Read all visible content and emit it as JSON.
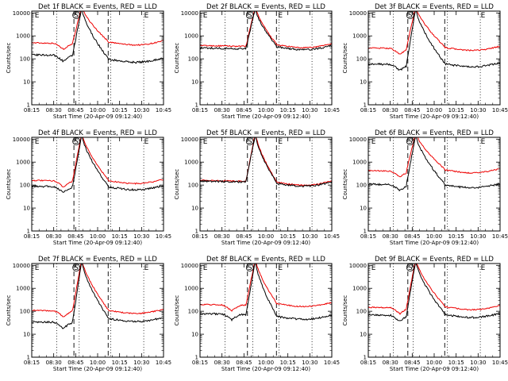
{
  "chart_data": {
    "type": "line",
    "y_scale": "log",
    "x_tick_labels": [
      "08:15",
      "08:30",
      "08:45",
      "10:00",
      "10:15",
      "10:30",
      "10:45"
    ],
    "y_tick_labels": [
      "1",
      "10",
      "100",
      "1000",
      "10000"
    ],
    "ylim": [
      1,
      12000
    ],
    "y_ticks": [
      1,
      10,
      100,
      1000,
      10000
    ],
    "xlabel": "Start Time (20-Apr-09 09:12:40)",
    "ylabel": "Counts/sec",
    "colors": {
      "events": "#000000",
      "lld": "#ee0000"
    },
    "marker_letters": [
      "E",
      "S",
      "E"
    ],
    "panels": [
      {
        "title": "Det 1f BLACK = Events, RED = LLD",
        "dotted": [
          0.19,
          0.36,
          0.6,
          0.85
        ],
        "dashed": [
          0.32,
          0.58
        ],
        "markers": [
          0.04,
          0.32,
          0.87
        ],
        "events_level": 150,
        "lld_level": 500,
        "events_after": 80,
        "lld_after": 450,
        "dip": true
      },
      {
        "title": "Det 2f BLACK = Events, RED = LLD",
        "dotted": [
          0.19,
          0.4,
          0.6,
          0.85
        ],
        "dashed": [
          0.36,
          0.58
        ],
        "markers": [
          0.04,
          0.36,
          0.61
        ],
        "events_level": 300,
        "lld_level": 380,
        "events_after": 280,
        "lld_after": 340,
        "dip": false
      },
      {
        "title": "Det 3f BLACK = Events, RED = LLD",
        "dotted": [
          0.19,
          0.34,
          0.6,
          0.85
        ],
        "dashed": [
          0.3,
          0.58
        ],
        "markers": [
          0.04,
          0.3,
          0.87
        ],
        "events_level": 60,
        "lld_level": 300,
        "events_after": 50,
        "lld_after": 260,
        "dip": true
      },
      {
        "title": "Det 4f BLACK = Events, RED = LLD",
        "dotted": [
          0.19,
          0.36,
          0.6,
          0.85
        ],
        "dashed": [
          0.32,
          0.58
        ],
        "markers": [
          0.04,
          0.32,
          0.87
        ],
        "events_level": 90,
        "lld_level": 160,
        "events_after": 70,
        "lld_after": 130,
        "dip": true
      },
      {
        "title": "Det 5f BLACK = Events, RED = LLD",
        "dotted": [
          0.19,
          0.4,
          0.6,
          0.85
        ],
        "dashed": [
          0.36,
          0.58
        ],
        "markers": [
          0.04,
          0.36,
          0.61
        ],
        "events_level": 150,
        "lld_level": 160,
        "events_after": 100,
        "lld_after": 110,
        "dip": false
      },
      {
        "title": "Det 6f BLACK = Events, RED = LLD",
        "dotted": [
          0.19,
          0.34,
          0.6,
          0.85
        ],
        "dashed": [
          0.3,
          0.58
        ],
        "markers": [
          0.04,
          0.3,
          0.87
        ],
        "events_level": 110,
        "lld_level": 420,
        "events_after": 85,
        "lld_after": 380,
        "dip": true
      },
      {
        "title": "Det 7f BLACK = Events, RED = LLD",
        "dotted": [
          0.19,
          0.36,
          0.6,
          0.85
        ],
        "dashed": [
          0.32,
          0.58
        ],
        "markers": [
          0.04,
          0.32,
          0.87
        ],
        "events_level": 35,
        "lld_level": 110,
        "events_after": 40,
        "lld_after": 90,
        "dip": true
      },
      {
        "title": "Det 8f BLACK = Events, RED = LLD",
        "dotted": [
          0.19,
          0.4,
          0.6,
          0.85
        ],
        "dashed": [
          0.36,
          0.58
        ],
        "markers": [
          0.04,
          0.36,
          0.61
        ],
        "events_level": 80,
        "lld_level": 200,
        "events_after": 50,
        "lld_after": 180,
        "dip": true
      },
      {
        "title": "Det 9f BLACK = Events, RED = LLD",
        "dotted": [
          0.19,
          0.34,
          0.6,
          0.85
        ],
        "dashed": [
          0.3,
          0.58
        ],
        "markers": [
          0.04,
          0.3,
          0.87
        ],
        "events_level": 70,
        "lld_level": 150,
        "events_after": 60,
        "lld_after": 130,
        "dip": true
      }
    ]
  }
}
